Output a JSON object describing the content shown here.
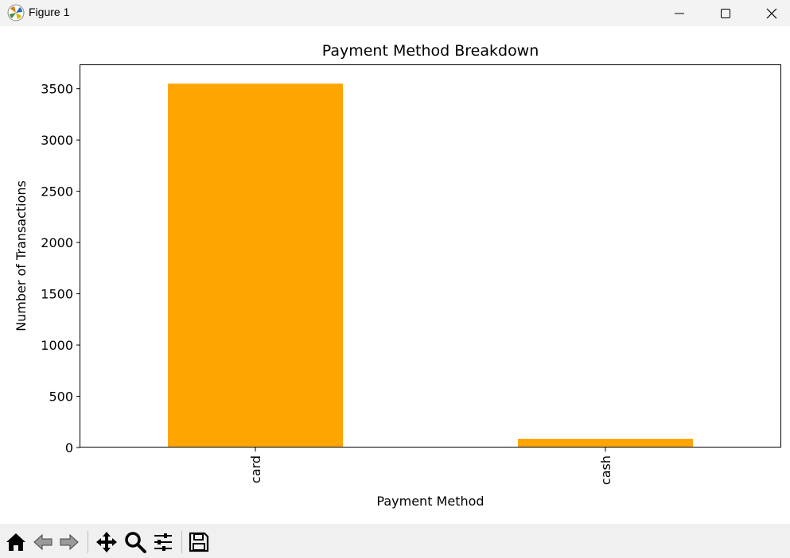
{
  "window": {
    "title": "Figure 1",
    "controls": {
      "minimize": "minimize",
      "maximize": "maximize",
      "close": "close"
    }
  },
  "toolbar": {
    "items": [
      {
        "name": "home-icon",
        "label": "Home"
      },
      {
        "name": "back-icon",
        "label": "Back"
      },
      {
        "name": "forward-icon",
        "label": "Forward"
      },
      {
        "name": "pan-icon",
        "label": "Pan"
      },
      {
        "name": "zoom-icon",
        "label": "Zoom"
      },
      {
        "name": "configure-subplots-icon",
        "label": "Configure subplots"
      },
      {
        "name": "save-icon",
        "label": "Save"
      }
    ]
  },
  "colors": {
    "bar": "#ffa500",
    "titlebar": "#f3f3f3",
    "toolbar": "#f0f0f0"
  },
  "chart_data": {
    "type": "bar",
    "title": "Payment Method Breakdown",
    "xlabel": "Payment Method",
    "ylabel": "Number of Transactions",
    "categories": [
      "card",
      "cash"
    ],
    "values": [
      3550,
      85
    ],
    "ylim": [
      0,
      3730
    ],
    "yticks": [
      0,
      500,
      1000,
      1500,
      2000,
      2500,
      3000,
      3500
    ],
    "grid": false,
    "legend": "none",
    "xtick_rotation": 90
  }
}
